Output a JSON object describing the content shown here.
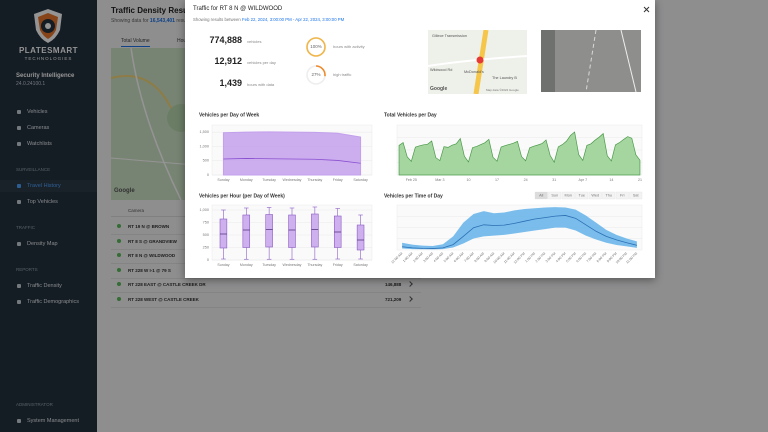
{
  "sidebar": {
    "brand": "PLATESMART",
    "brand_sub": "TECHNOLOGIES",
    "app_name": "Security Intelligence",
    "version": "24.0.24100.1",
    "nav_top": [
      "Vehicles",
      "Cameras",
      "Watchlists"
    ],
    "sections": [
      {
        "heading": "SURVEILLANCE",
        "items": [
          "Travel History",
          "Top Vehicles"
        ]
      },
      {
        "heading": "TRAFFIC",
        "items": [
          "Density Map"
        ]
      },
      {
        "heading": "REPORTS",
        "items": [
          "Traffic Density",
          "Traffic Demographics"
        ]
      }
    ],
    "footer": {
      "heading": "ADMINISTRATOR",
      "items": [
        "System Management"
      ]
    }
  },
  "main": {
    "title": "Traffic Density Results",
    "showing_prefix": "Showing data for",
    "showing_count": "16,543,401",
    "showing_suffix": "results",
    "tabs": [
      "Total Volume",
      "Hourly"
    ],
    "map_attribution": "Google",
    "table_header": "Camera",
    "rows": [
      {
        "camera": "RT 19 N @ BROWN"
      },
      {
        "camera": "RT 8 S @ GRANDVIEW"
      },
      {
        "camera": "RT 8 N @ WILDWOOD"
      },
      {
        "camera": "RT 228 W I-1 @ 79 S"
      },
      {
        "camera": "RT 228 EAST @ CASTLE CREEK DR",
        "total": "146,888"
      },
      {
        "camera": "RT 228 WEST @ CASTLE CREEK",
        "total": "721,209"
      }
    ]
  },
  "modal": {
    "title": "Traffic for RT 8 N @ WILDWOOD",
    "subtitle_prefix": "Showing results between",
    "subtitle_range": "Feb 22, 2024, 3:00:00 PM - Apr 22, 2024, 3:00:00 PM",
    "stats": [
      {
        "value": "774,888",
        "label": "vehicles"
      },
      {
        "value": "12,912",
        "label": "vehicles per day"
      },
      {
        "value": "1,439",
        "label": "hours with data"
      }
    ],
    "rings": [
      {
        "value": 100,
        "label": "100%",
        "caption": "hours with activity",
        "color": "#f0b64a"
      },
      {
        "value": 27,
        "label": "27%",
        "caption": "high traffic",
        "color": "#f08a2c"
      }
    ],
    "map": {
      "labels": [
        "Gillece Transmission",
        "Wildwood Rd",
        "McDonald's",
        "The Laundry B"
      ],
      "brand": "Google",
      "attribution": "Map data ©2024 Google"
    },
    "charts": [
      {
        "type": "line",
        "title": "Vehicles per Day of Week",
        "categories": [
          "Sunday",
          "Monday",
          "Tuesday",
          "Wednesday",
          "Thursday",
          "Friday",
          "Saturday"
        ],
        "ylim": [
          0,
          1750
        ],
        "yticks": [
          0,
          500,
          {
            "value": 1000,
            "label": "1,000"
          },
          {
            "value": 1500,
            "label": "1,500"
          }
        ],
        "series": [
          {
            "kind": "area",
            "color": "#c3a0ec",
            "values": [
              1480,
              1500,
              1510,
              1500,
              1490,
              1460,
              1330
            ]
          },
          {
            "kind": "line",
            "color": "#8a4fd0",
            "values": [
              560,
              580,
              570,
              560,
              550,
              510,
              410
            ]
          }
        ]
      },
      {
        "type": "area",
        "title": "Total Vehicles per Day",
        "color": "#4c9a4a",
        "fill": "#a5d6a0",
        "ylim": [
          0,
          25000
        ],
        "categories": [
          null,
          null,
          null,
          "Feb 25",
          null,
          null,
          null,
          null,
          null,
          null,
          "Mar 3",
          null,
          null,
          null,
          null,
          null,
          null,
          "10",
          null,
          null,
          null,
          null,
          null,
          null,
          "17",
          null,
          null,
          null,
          null,
          null,
          null,
          "24",
          null,
          null,
          null,
          null,
          null,
          null,
          "31",
          null,
          null,
          null,
          null,
          null,
          null,
          "Apr 7",
          null,
          null,
          null,
          null,
          null,
          null,
          "14",
          null,
          null,
          null,
          null,
          null,
          null,
          "21"
        ],
        "values": [
          14800,
          16200,
          9100,
          6800,
          13900,
          14600,
          15100,
          15400,
          17000,
          8700,
          7200,
          14200,
          13800,
          14900,
          15600,
          18200,
          9400,
          6500,
          13700,
          14300,
          15200,
          16100,
          17800,
          8900,
          6900,
          14000,
          14700,
          15300,
          15900,
          16800,
          9200,
          7100,
          13600,
          14400,
          15000,
          15700,
          17500,
          9800,
          6400,
          14100,
          15200,
          16900,
          19800,
          21500,
          10200,
          7300,
          14800,
          15600,
          17400,
          18900,
          20700,
          9600,
          7000,
          15100,
          16200,
          17800,
          19200,
          18400,
          10100,
          7400
        ]
      },
      {
        "type": "box",
        "title": "Vehicles per Hour (per Day of Week)",
        "categories": [
          "Sunday",
          "Monday",
          "Tuesday",
          "Wednesday",
          "Thursday",
          "Friday",
          "Saturday"
        ],
        "ylim": [
          0,
          1100
        ],
        "yticks": [
          0,
          250,
          500,
          750,
          {
            "value": 1000,
            "label": "1,000"
          }
        ],
        "color": "#8a5cc4",
        "fill": "#cfb0ee",
        "min": [
          20,
          15,
          15,
          15,
          15,
          20,
          20
        ],
        "q1": [
          240,
          250,
          260,
          250,
          260,
          250,
          200
        ],
        "median": [
          520,
          600,
          610,
          600,
          610,
          560,
          400
        ],
        "q3": [
          820,
          900,
          910,
          900,
          920,
          880,
          700
        ],
        "max": [
          1000,
          1040,
          1050,
          1040,
          1060,
          1030,
          900
        ]
      },
      {
        "type": "band",
        "title": "Vehicles per Time of Day",
        "filters": [
          "All",
          "Sun",
          "Mon",
          "Tue",
          "Wed",
          "Thu",
          "Fri",
          "Sat"
        ],
        "ylim": [
          0,
          1250
        ],
        "categories": [
          "12:00 AM",
          "1:00 AM",
          "2:00 AM",
          "3:00 AM",
          "4:00 AM",
          "5:00 AM",
          "6:00 AM",
          "7:00 AM",
          "8:00 AM",
          "9:00 AM",
          "10:00 AM",
          "11:00 AM",
          "12:00 PM",
          "1:00 PM",
          "2:00 PM",
          "3:00 PM",
          "4:00 PM",
          "5:00 PM",
          "6:00 PM",
          "7:00 PM",
          "8:00 PM",
          "9:00 PM",
          "10:00 PM",
          "11:00 PM"
        ],
        "band_color": "#5aaee8",
        "low": [
          40,
          25,
          20,
          18,
          25,
          70,
          180,
          320,
          380,
          400,
          420,
          460,
          500,
          540,
          580,
          620,
          620,
          540,
          400,
          290,
          200,
          140,
          100,
          60
        ],
        "high": [
          200,
          150,
          120,
          110,
          160,
          380,
          760,
          1000,
          1080,
          1020,
          1040,
          1100,
          1140,
          1160,
          1180,
          1190,
          1180,
          1120,
          960,
          760,
          560,
          420,
          320,
          240
        ],
        "line_color": "#2b6fb4",
        "values": [
          90,
          60,
          45,
          40,
          60,
          150,
          380,
          620,
          700,
          680,
          690,
          740,
          800,
          860,
          900,
          940,
          960,
          880,
          700,
          520,
          380,
          280,
          200,
          130
        ]
      }
    ]
  }
}
